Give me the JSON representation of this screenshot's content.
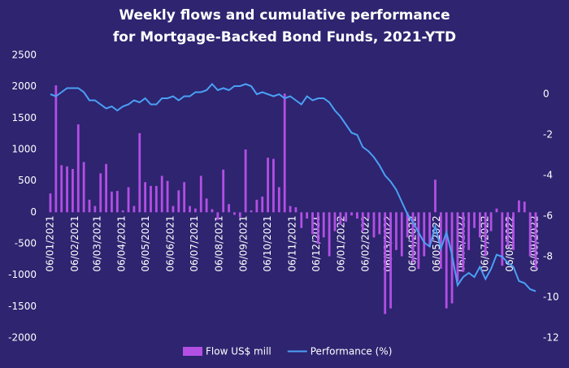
{
  "chart_data": {
    "type": "bar-line",
    "title": "Weekly flows and cumulative performance for Mortgage-Backed Bond Funds, 2021-YTD",
    "x": [
      "06/01/2021",
      "13/01/2021",
      "20/01/2021",
      "27/01/2021",
      "03/02/2021",
      "10/02/2021",
      "17/02/2021",
      "24/02/2021",
      "03/03/2021",
      "10/03/2021",
      "17/03/2021",
      "24/03/2021",
      "31/03/2021",
      "07/04/2021",
      "14/04/2021",
      "21/04/2021",
      "28/04/2021",
      "05/05/2021",
      "12/05/2021",
      "19/05/2021",
      "26/05/2021",
      "02/06/2021",
      "09/06/2021",
      "16/06/2021",
      "23/06/2021",
      "30/06/2021",
      "07/07/2021",
      "14/07/2021",
      "21/07/2021",
      "28/07/2021",
      "04/08/2021",
      "11/08/2021",
      "18/08/2021",
      "25/08/2021",
      "01/09/2021",
      "08/09/2021",
      "15/09/2021",
      "22/09/2021",
      "29/09/2021",
      "06/10/2021",
      "13/10/2021",
      "20/10/2021",
      "27/10/2021",
      "03/11/2021",
      "10/11/2021",
      "17/11/2021",
      "24/11/2021",
      "01/12/2021",
      "08/12/2021",
      "15/12/2021",
      "22/12/2021",
      "29/12/2021",
      "05/01/2022",
      "12/01/2022",
      "19/01/2022",
      "26/01/2022",
      "02/02/2022",
      "09/02/2022",
      "16/02/2022",
      "23/02/2022",
      "02/03/2022",
      "09/03/2022",
      "16/03/2022",
      "23/03/2022",
      "30/03/2022",
      "06/04/2022",
      "13/04/2022",
      "20/04/2022",
      "27/04/2022",
      "04/05/2022",
      "11/05/2022",
      "18/05/2022",
      "25/05/2022",
      "01/06/2022",
      "08/06/2022",
      "15/06/2022",
      "22/06/2022",
      "29/06/2022",
      "06/07/2022",
      "13/07/2022",
      "20/07/2022",
      "27/07/2022",
      "03/08/2022",
      "10/08/2022",
      "17/08/2022",
      "24/08/2022",
      "31/08/2022",
      "07/09/2022"
    ],
    "xlim": [
      "04/01/2021",
      "08/09/2022"
    ],
    "xticks": [
      "06/01/2021",
      "06/02/2021",
      "06/03/2021",
      "06/04/2021",
      "06/05/2021",
      "06/06/2021",
      "06/07/2021",
      "06/08/2021",
      "06/09/2021",
      "06/10/2021",
      "06/11/2021",
      "06/12/2021",
      "06/01/2022",
      "06/02/2022",
      "06/03/2022",
      "06/04/2022",
      "06/05/2022",
      "06/06/2022",
      "06/07/2022",
      "06/08/2022",
      "06/09/2022"
    ],
    "ylim": [
      -2000,
      2500
    ],
    "yticks": [
      -2000,
      -1500,
      -1000,
      -500,
      0,
      500,
      1000,
      1500,
      2000,
      2500
    ],
    "y2lim": [
      -12,
      1.92
    ],
    "y2ticks": [
      -12,
      -10,
      -8,
      -6,
      -4,
      -2,
      0
    ],
    "series": [
      {
        "name": "Flow US$ mill",
        "color": "#b34fe3",
        "kind": "bar",
        "values": [
          300,
          2020,
          750,
          730,
          690,
          1400,
          800,
          200,
          100,
          620,
          770,
          330,
          340,
          30,
          400,
          100,
          1260,
          480,
          420,
          420,
          580,
          500,
          100,
          350,
          480,
          100,
          60,
          580,
          220,
          50,
          -120,
          680,
          130,
          -40,
          -80,
          1000,
          30,
          200,
          250,
          870,
          850,
          400,
          1890,
          100,
          80,
          -250,
          -100,
          -350,
          -500,
          -400,
          -700,
          -300,
          -200,
          -150,
          -50,
          -100,
          -300,
          -100,
          -400,
          -350,
          -1620,
          -1530,
          -600,
          -700,
          -400,
          -800,
          -900,
          -700,
          -550,
          520,
          -900,
          -1530,
          -1450,
          -1100,
          -950,
          -600,
          -250,
          -400,
          -700,
          -300,
          60,
          -850,
          -550,
          -600,
          190,
          170,
          -700,
          -900
        ]
      },
      {
        "name": "Performance (%)",
        "color": "#4aa0f5",
        "kind": "line",
        "axis": "y2",
        "values": [
          0,
          -0.1,
          0.1,
          0.3,
          0.3,
          0.3,
          0.1,
          -0.3,
          -0.3,
          -0.5,
          -0.7,
          -0.6,
          -0.8,
          -0.6,
          -0.5,
          -0.3,
          -0.4,
          -0.2,
          -0.5,
          -0.5,
          -0.2,
          -0.2,
          -0.1,
          -0.3,
          -0.1,
          -0.1,
          0.1,
          0.1,
          0.2,
          0.5,
          0.2,
          0.3,
          0.2,
          0.4,
          0.4,
          0.5,
          0.4,
          0,
          0.1,
          0,
          -0.1,
          0,
          -0.2,
          -0.1,
          -0.3,
          -0.5,
          -0.1,
          -0.3,
          -0.2,
          -0.2,
          -0.4,
          -0.8,
          -1.1,
          -1.5,
          -1.9,
          -2.0,
          -2.6,
          -2.8,
          -3.1,
          -3.5,
          -4.0,
          -4.3,
          -4.7,
          -5.3,
          -5.9,
          -6.3,
          -6.8,
          -7.3,
          -7.5,
          -6.5,
          -7.6,
          -6.8,
          -7.9,
          -9.4,
          -9.0,
          -8.8,
          -9.0,
          -8.5,
          -9.1,
          -8.6,
          -7.9,
          -8.0,
          -8.3,
          -8.5,
          -9.2,
          -9.3,
          -9.6,
          -9.7
        ]
      }
    ],
    "legend": "bottom"
  }
}
